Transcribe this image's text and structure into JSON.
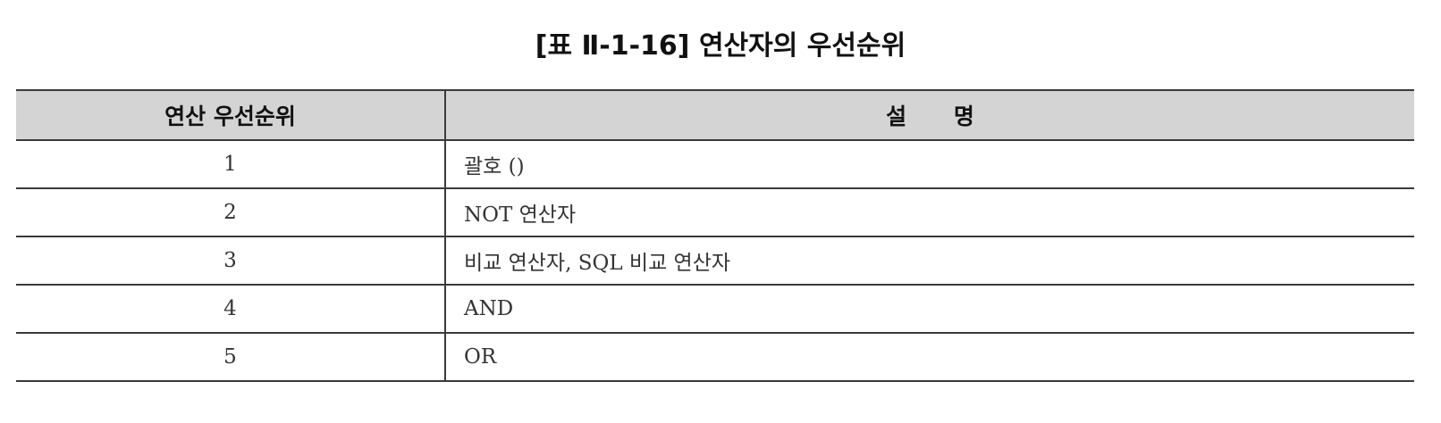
{
  "caption": "[표 Ⅱ-1-16] 연산자의 우선순위",
  "table": {
    "headers": [
      "연산 우선순위",
      "설 명"
    ],
    "rows": [
      {
        "priority": "1",
        "description": "괄호 ()"
      },
      {
        "priority": "2",
        "description": "NOT 연산자"
      },
      {
        "priority": "3",
        "description": "비교 연산자, SQL 비교 연산자"
      },
      {
        "priority": "4",
        "description": "AND"
      },
      {
        "priority": "5",
        "description": "OR"
      }
    ]
  }
}
